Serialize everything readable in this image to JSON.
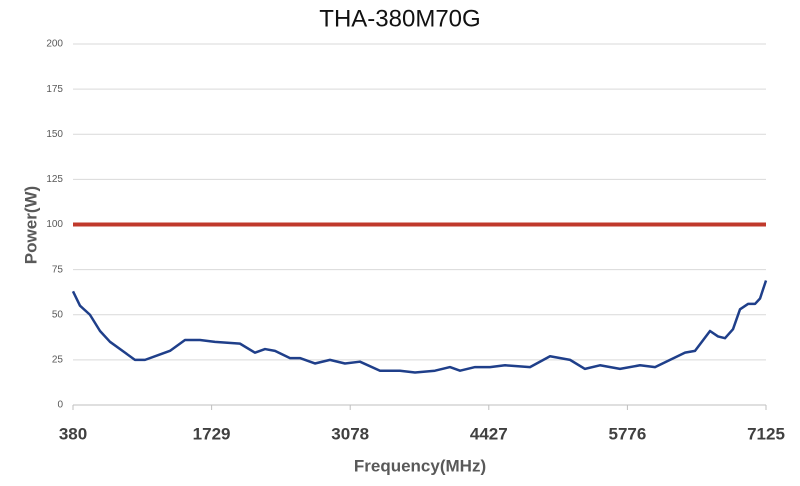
{
  "chart_data": {
    "type": "line",
    "title": "THA-380M70G",
    "x_label": "Frequency(MHz)",
    "y_label": "Power(W)",
    "xlim": [
      380,
      7125
    ],
    "xticks": [
      380,
      1729,
      3078,
      4427,
      5776,
      7125
    ],
    "ylim": [
      0,
      200
    ],
    "yticks": [
      0,
      25,
      50,
      75,
      100,
      125,
      150,
      175,
      200
    ],
    "grid": true,
    "series": [
      {
        "color": "#c0392b",
        "x": [
          380,
          7125
        ],
        "values": [
          100,
          100
        ]
      },
      {
        "color": "#1f3f8a",
        "x": [
          380,
          448,
          545,
          643,
          740,
          886,
          983,
          1081,
          1227,
          1324,
          1470,
          1616,
          1762,
          2005,
          2151,
          2249,
          2346,
          2492,
          2589,
          2735,
          2881,
          3027,
          3173,
          3368,
          3562,
          3709,
          3903,
          4049,
          4147,
          4293,
          4439,
          4585,
          4828,
          5023,
          5218,
          5363,
          5509,
          5704,
          5899,
          6045,
          6191,
          6337,
          6434,
          6580,
          6658,
          6726,
          6804,
          6872,
          6950,
          7018,
          7067,
          7125
        ],
        "values": [
          63,
          55,
          50,
          41,
          35,
          29,
          25,
          25,
          28,
          30,
          36,
          36,
          35,
          34,
          29,
          31,
          30,
          26,
          26,
          23,
          25,
          23,
          24,
          19,
          19,
          18,
          19,
          21,
          19,
          21,
          21,
          22,
          21,
          27,
          25,
          20,
          22,
          20,
          22,
          21,
          25,
          29,
          30,
          41,
          38,
          37,
          42,
          53,
          56,
          56,
          59,
          69
        ]
      }
    ]
  }
}
